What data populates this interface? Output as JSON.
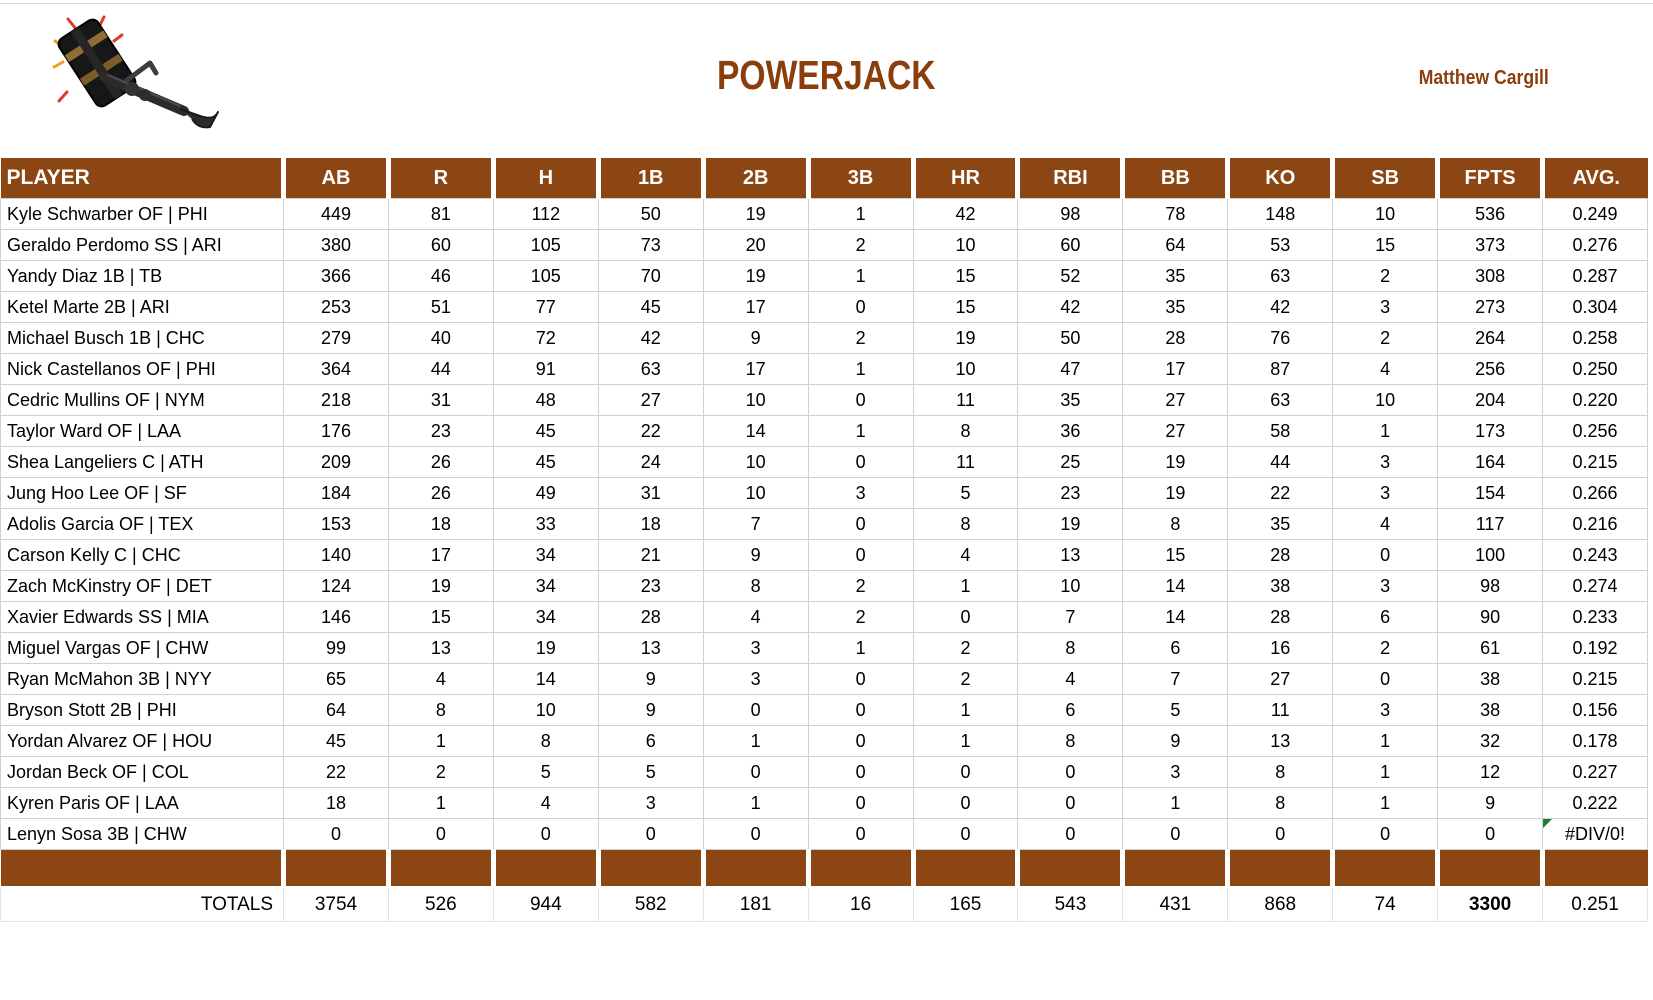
{
  "header": {
    "title": "POWERJACK",
    "owner": "Matthew Cargill"
  },
  "table": {
    "columns": [
      "PLAYER",
      "AB",
      "R",
      "H",
      "1B",
      "2B",
      "3B",
      "HR",
      "RBI",
      "BB",
      "KO",
      "SB",
      "FPTS",
      "AVG."
    ],
    "rows": [
      {
        "player": "Kyle Schwarber OF | PHI",
        "stats": [
          449,
          81,
          112,
          50,
          19,
          1,
          42,
          98,
          78,
          148,
          10,
          536,
          "0.249"
        ]
      },
      {
        "player": "Geraldo Perdomo SS | ARI",
        "stats": [
          380,
          60,
          105,
          73,
          20,
          2,
          10,
          60,
          64,
          53,
          15,
          373,
          "0.276"
        ]
      },
      {
        "player": "Yandy Diaz 1B | TB",
        "stats": [
          366,
          46,
          105,
          70,
          19,
          1,
          15,
          52,
          35,
          63,
          2,
          308,
          "0.287"
        ]
      },
      {
        "player": "Ketel Marte 2B | ARI",
        "stats": [
          253,
          51,
          77,
          45,
          17,
          0,
          15,
          42,
          35,
          42,
          3,
          273,
          "0.304"
        ]
      },
      {
        "player": "Michael Busch 1B | CHC",
        "stats": [
          279,
          40,
          72,
          42,
          9,
          2,
          19,
          50,
          28,
          76,
          2,
          264,
          "0.258"
        ]
      },
      {
        "player": "Nick Castellanos OF | PHI",
        "stats": [
          364,
          44,
          91,
          63,
          17,
          1,
          10,
          47,
          17,
          87,
          4,
          256,
          "0.250"
        ]
      },
      {
        "player": "Cedric Mullins OF | NYM",
        "stats": [
          218,
          31,
          48,
          27,
          10,
          0,
          11,
          35,
          27,
          63,
          10,
          204,
          "0.220"
        ]
      },
      {
        "player": "Taylor Ward OF | LAA",
        "stats": [
          176,
          23,
          45,
          22,
          14,
          1,
          8,
          36,
          27,
          58,
          1,
          173,
          "0.256"
        ]
      },
      {
        "player": "Shea Langeliers C | ATH",
        "stats": [
          209,
          26,
          45,
          24,
          10,
          0,
          11,
          25,
          19,
          44,
          3,
          164,
          "0.215"
        ]
      },
      {
        "player": "Jung Hoo Lee OF | SF",
        "stats": [
          184,
          26,
          49,
          31,
          10,
          3,
          5,
          23,
          19,
          22,
          3,
          154,
          "0.266"
        ]
      },
      {
        "player": "Adolis Garcia OF | TEX",
        "stats": [
          153,
          18,
          33,
          18,
          7,
          0,
          8,
          19,
          8,
          35,
          4,
          117,
          "0.216"
        ]
      },
      {
        "player": "Carson Kelly C | CHC",
        "stats": [
          140,
          17,
          34,
          21,
          9,
          0,
          4,
          13,
          15,
          28,
          0,
          100,
          "0.243"
        ]
      },
      {
        "player": "Zach McKinstry OF | DET",
        "stats": [
          124,
          19,
          34,
          23,
          8,
          2,
          1,
          10,
          14,
          38,
          3,
          98,
          "0.274"
        ]
      },
      {
        "player": "Xavier Edwards SS | MIA",
        "stats": [
          146,
          15,
          34,
          28,
          4,
          2,
          0,
          7,
          14,
          28,
          6,
          90,
          "0.233"
        ]
      },
      {
        "player": "Miguel Vargas OF | CHW",
        "stats": [
          99,
          13,
          19,
          13,
          3,
          1,
          2,
          8,
          6,
          16,
          2,
          61,
          "0.192"
        ]
      },
      {
        "player": "Ryan McMahon 3B | NYY",
        "stats": [
          65,
          4,
          14,
          9,
          3,
          0,
          2,
          4,
          7,
          27,
          0,
          38,
          "0.215"
        ]
      },
      {
        "player": "Bryson Stott 2B | PHI",
        "stats": [
          64,
          8,
          10,
          9,
          0,
          0,
          1,
          6,
          5,
          11,
          3,
          38,
          "0.156"
        ]
      },
      {
        "player": "Yordan Alvarez OF | HOU",
        "stats": [
          45,
          1,
          8,
          6,
          1,
          0,
          1,
          8,
          9,
          13,
          1,
          32,
          "0.178"
        ]
      },
      {
        "player": "Jordan Beck OF | COL",
        "stats": [
          22,
          2,
          5,
          5,
          0,
          0,
          0,
          0,
          3,
          8,
          1,
          12,
          "0.227"
        ]
      },
      {
        "player": "Kyren Paris OF | LAA",
        "stats": [
          18,
          1,
          4,
          3,
          1,
          0,
          0,
          0,
          1,
          8,
          1,
          9,
          "0.222"
        ]
      },
      {
        "player": "Lenyn Sosa 3B | CHW",
        "stats": [
          0,
          0,
          0,
          0,
          0,
          0,
          0,
          0,
          0,
          0,
          0,
          0,
          "#DIV/0!"
        ]
      }
    ],
    "totals_label": "TOTALS",
    "totals": [
      3754,
      526,
      944,
      582,
      181,
      16,
      165,
      543,
      431,
      868,
      74,
      3300,
      "0.251"
    ],
    "error_value": "#DIV/0!"
  },
  "colors": {
    "header_brown": "#8c4614",
    "title_brown": "#8a3e0c",
    "gridline": "#d0d0d0",
    "error_indicator_green": "#1e7b34"
  }
}
